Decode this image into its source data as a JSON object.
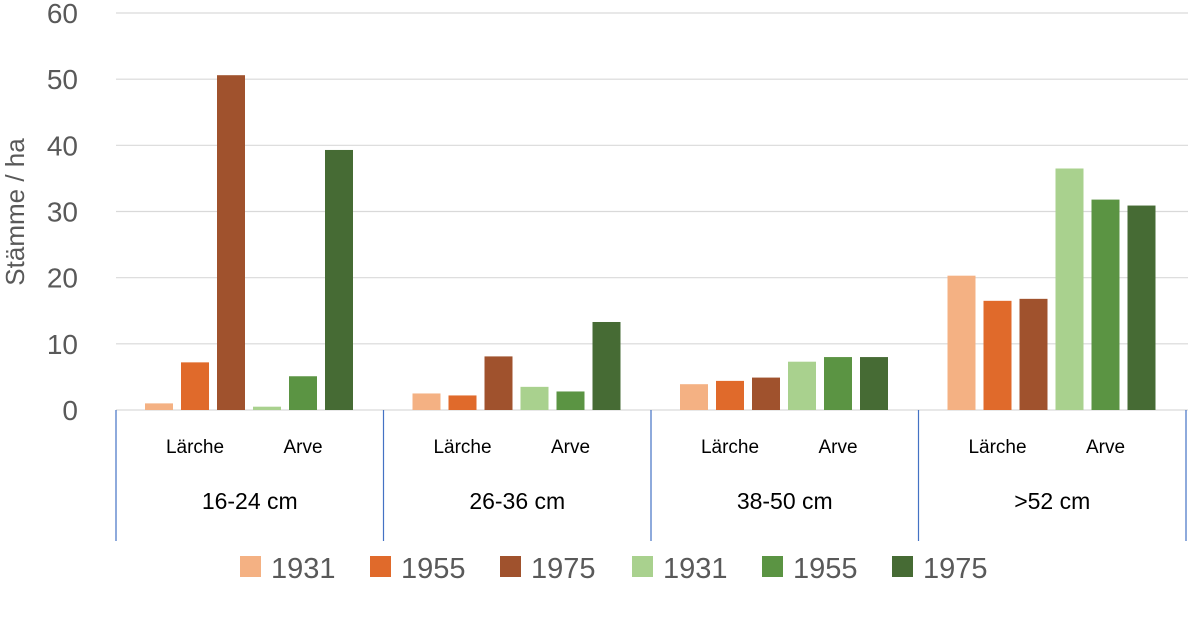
{
  "chart_data": {
    "type": "bar",
    "ylabel": "Stämme / ha",
    "ylim": [
      0,
      60
    ],
    "yticks": [
      "0",
      "10",
      "20",
      "30",
      "40",
      "50",
      "60"
    ],
    "grid": true,
    "legend_position": "bottom",
    "groups": [
      {
        "label": "16-24 cm",
        "species": [
          "Lärche",
          "Arve"
        ]
      },
      {
        "label": "26-36 cm",
        "species": [
          "Lärche",
          "Arve"
        ]
      },
      {
        "label": "38-50 cm",
        "species": [
          "Lärche",
          "Arve"
        ]
      },
      {
        "label": ">52 cm",
        "species": [
          "Lärche",
          "Arve"
        ]
      }
    ],
    "series": [
      {
        "name": "1931",
        "species": "Lärche",
        "color": "#F4B183",
        "values": [
          1.0,
          2.5,
          3.9,
          20.3
        ]
      },
      {
        "name": "1955",
        "species": "Lärche",
        "color": "#E06A2B",
        "values": [
          7.2,
          2.2,
          4.4,
          16.5
        ]
      },
      {
        "name": "1975",
        "species": "Lärche",
        "color": "#A0522D",
        "values": [
          50.6,
          8.1,
          4.9,
          16.8
        ]
      },
      {
        "name": "1931",
        "species": "Arve",
        "color": "#A9D18E",
        "values": [
          0.5,
          3.5,
          7.3,
          36.5
        ]
      },
      {
        "name": "1955",
        "species": "Arve",
        "color": "#5B9443",
        "values": [
          5.1,
          2.8,
          8.0,
          31.8
        ]
      },
      {
        "name": "1975",
        "species": "Arve",
        "color": "#466B34",
        "values": [
          39.3,
          13.3,
          8.0,
          30.9
        ]
      }
    ],
    "axis_line_color": "#4472C4",
    "grid_color": "#D9D9D9"
  }
}
